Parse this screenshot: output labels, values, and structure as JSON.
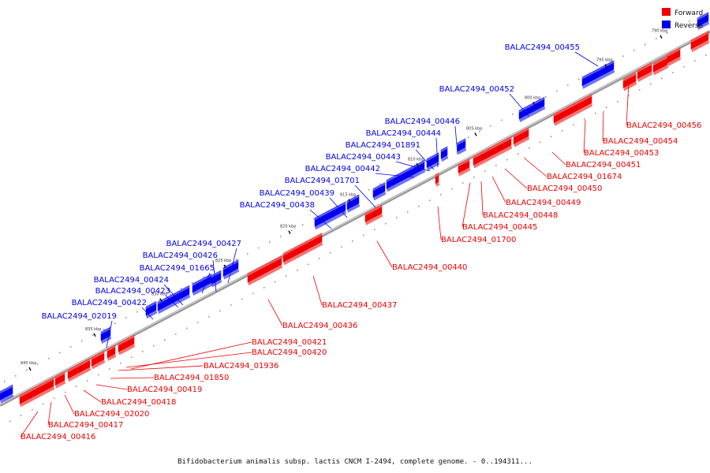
{
  "caption": "Bifidobacterium animalis subsp. lactis CNCM I-2494, complete genome. - 0..194311...",
  "legend": {
    "forward_label": "Forward",
    "reverse_label": "Reverse",
    "forward_color": "#ee0000",
    "reverse_color": "#0000ee"
  },
  "ticks": [
    "790 kbp",
    "795 kbp",
    "800 kbp",
    "805 kbp",
    "810 kbp",
    "815 kbp",
    "820 kbp",
    "825 kbp",
    "830 kbp",
    "835 kbp",
    "840 kbp"
  ],
  "reverse_genes": [
    "BALAC2494_00455",
    "BALAC2494_00452",
    "BALAC2494_00446",
    "BALAC2494_00444",
    "BALAC2494_01891",
    "BALAC2494_00443",
    "BALAC2494_00442",
    "BALAC2494_01701",
    "BALAC2494_00439",
    "BALAC2494_00438",
    "BALAC2494_00427",
    "BALAC2494_00426",
    "BALAC2494_01665",
    "BALAC2494_00424",
    "BALAC2494_00423",
    "BALAC2494_00422",
    "BALAC2494_02019"
  ],
  "forward_genes": [
    "BALAC2494_00456",
    "BALAC2494_00454",
    "BALAC2494_00453",
    "BALAC2494_00451",
    "BALAC2494_01674",
    "BALAC2494_00450",
    "BALAC2494_00449",
    "BALAC2494_00448",
    "BALAC2494_00445",
    "BALAC2494_01700",
    "BALAC2494_00440",
    "BALAC2494_00437",
    "BALAC2494_00436",
    "BALAC2494_00421",
    "BALAC2494_00420",
    "BALAC2494_01936",
    "BALAC2494_01850",
    "BALAC2494_00419",
    "BALAC2494_00418",
    "BALAC2494_02020",
    "BALAC2494_00417",
    "BALAC2494_00416"
  ]
}
